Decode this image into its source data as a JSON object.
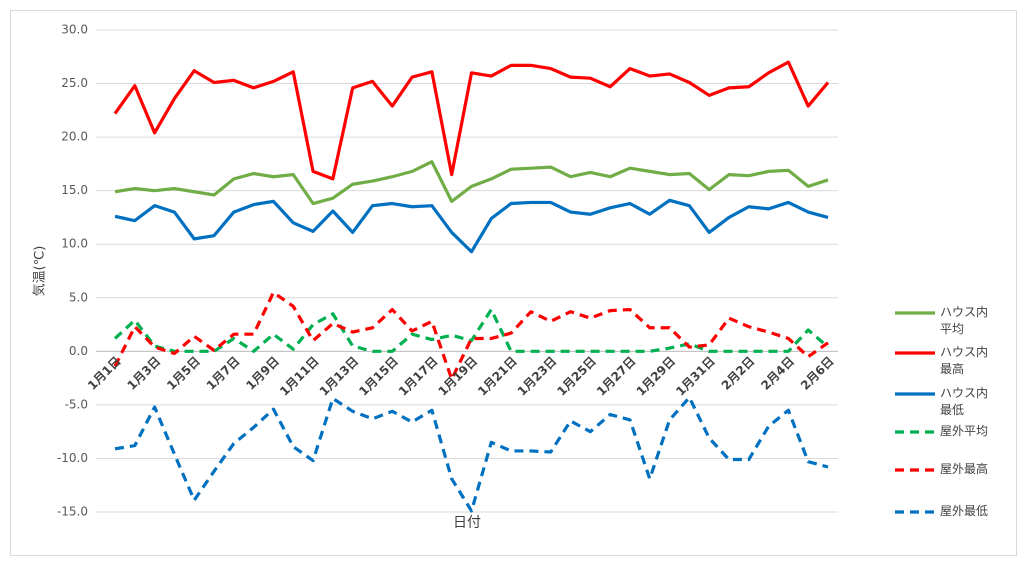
{
  "chart_data": {
    "type": "line",
    "x_label": "日付",
    "y_label": "気温(℃)",
    "categories": [
      "1月1日",
      null,
      "1月3日",
      null,
      "1月5日",
      null,
      "1月7日",
      null,
      "1月9日",
      null,
      "1月11日",
      null,
      "1月13日",
      null,
      "1月15日",
      null,
      "1月17日",
      null,
      "1月19日",
      null,
      "1月21日",
      null,
      "1月23日",
      null,
      "1月25日",
      null,
      "1月27日",
      null,
      "1月29日",
      null,
      "1月31日",
      null,
      "2月2日",
      null,
      "2月4日",
      null,
      "2月6日"
    ],
    "ylim": [
      -15,
      30
    ],
    "yticks": [
      {
        "value": -15,
        "label": "-15.0"
      },
      {
        "value": -10,
        "label": "-10.0"
      },
      {
        "value": -5,
        "label": "-5.0"
      },
      {
        "value": 0,
        "label": "0.0"
      },
      {
        "value": 5,
        "label": "5.0"
      },
      {
        "value": 10,
        "label": "10.0"
      },
      {
        "value": 15,
        "label": "15.0"
      },
      {
        "value": 20,
        "label": "20.0"
      },
      {
        "value": 25,
        "label": "25.0"
      },
      {
        "value": 30,
        "label": "30.0"
      }
    ],
    "grid": true,
    "legend": "right",
    "series": [
      {
        "name": "ハウス内平均",
        "color": "#70ad47",
        "dash": false,
        "values": [
          14.9,
          15.2,
          15.0,
          15.2,
          14.9,
          14.6,
          16.1,
          16.6,
          16.3,
          16.5,
          13.8,
          14.3,
          15.6,
          15.9,
          16.3,
          16.8,
          17.7,
          14.0,
          15.4,
          16.1,
          17.0,
          17.1,
          17.2,
          16.3,
          16.7,
          16.3,
          17.1,
          16.8,
          16.5,
          16.6,
          15.1,
          16.5,
          16.4,
          16.8,
          16.9,
          15.4,
          16.0
        ]
      },
      {
        "name": "ハウス内最高",
        "color": "#ff0000",
        "dash": false,
        "values": [
          22.2,
          24.8,
          20.4,
          23.6,
          26.2,
          25.1,
          25.3,
          24.6,
          25.2,
          26.1,
          16.8,
          16.1,
          24.6,
          25.2,
          22.9,
          25.6,
          26.1,
          16.5,
          26.0,
          25.7,
          26.7,
          26.7,
          26.4,
          25.6,
          25.5,
          24.7,
          26.4,
          25.7,
          25.9,
          25.1,
          23.9,
          24.6,
          24.7,
          26.0,
          27.0,
          22.9,
          25.1
        ]
      },
      {
        "name": "ハウス内最低",
        "color": "#0070c0",
        "dash": false,
        "values": [
          12.6,
          12.2,
          13.6,
          13.0,
          10.5,
          10.8,
          13.0,
          13.7,
          14.0,
          12.0,
          11.2,
          13.1,
          11.1,
          13.6,
          13.8,
          13.5,
          13.6,
          11.1,
          9.3,
          12.4,
          13.8,
          13.9,
          13.9,
          13.0,
          12.8,
          13.4,
          13.8,
          12.8,
          14.1,
          13.6,
          11.1,
          12.5,
          13.5,
          13.3,
          13.9,
          13.0,
          12.5
        ]
      },
      {
        "name": "屋外平均",
        "color": "#00b050",
        "dash": true,
        "values": [
          1.2,
          2.9,
          0.5,
          0,
          0,
          0,
          1.2,
          0,
          1.6,
          0.2,
          2.5,
          3.5,
          0.5,
          0,
          0,
          1.6,
          1.1,
          1.5,
          1.0,
          3.9,
          0,
          0,
          0,
          0,
          0,
          0,
          0,
          0,
          0.3,
          0.7,
          0,
          0,
          0,
          0,
          0,
          2.0,
          0.4
        ]
      },
      {
        "name": "屋外最高",
        "color": "#ff0000",
        "dash": true,
        "values": [
          -1.4,
          2.3,
          0.4,
          -0.2,
          1.4,
          0.1,
          1.6,
          1.6,
          5.5,
          4.2,
          1.0,
          2.6,
          1.8,
          2.2,
          3.9,
          1.9,
          2.8,
          -2.6,
          1.2,
          1.2,
          1.7,
          3.7,
          2.8,
          3.7,
          3.1,
          3.8,
          3.9,
          2.2,
          2.2,
          0.4,
          0.6,
          3.1,
          2.3,
          1.8,
          1.2,
          -0.5,
          0.8
        ]
      },
      {
        "name": "屋外最低",
        "color": "#0070c0",
        "dash": true,
        "values": [
          -9.1,
          -8.8,
          -5.2,
          -9.6,
          -13.9,
          -11.2,
          -8.6,
          -7.1,
          -5.4,
          -8.9,
          -10.2,
          -4.4,
          -5.6,
          -6.3,
          -5.6,
          -6.6,
          -5.5,
          -11.9,
          -14.9,
          -8.5,
          -9.3,
          -9.3,
          -9.4,
          -6.5,
          -7.5,
          -5.9,
          -6.4,
          -11.9,
          -6.4,
          -4.3,
          -8.1,
          -10.1,
          -10.1,
          -7.0,
          -5.5,
          -10.3,
          -10.8
        ]
      }
    ]
  }
}
